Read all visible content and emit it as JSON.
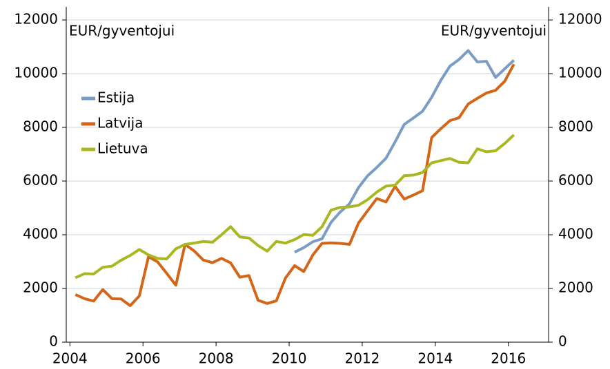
{
  "chart_data": {
    "type": "line",
    "annotations": [
      "EUR/gyventojui",
      "EUR/gyventojui"
    ],
    "x": [
      2004.15,
      2004.4,
      2004.65,
      2004.9,
      2005.15,
      2005.4,
      2005.65,
      2005.9,
      2006.15,
      2006.4,
      2006.65,
      2006.9,
      2007.15,
      2007.4,
      2007.65,
      2007.9,
      2008.15,
      2008.4,
      2008.65,
      2008.9,
      2009.15,
      2009.4,
      2009.65,
      2009.9,
      2010.15,
      2010.4,
      2010.65,
      2010.9,
      2011.15,
      2011.4,
      2011.65,
      2011.9,
      2012.15,
      2012.4,
      2012.65,
      2012.9,
      2013.15,
      2013.4,
      2013.65,
      2013.9,
      2014.15,
      2014.4,
      2014.65,
      2014.9,
      2015.15,
      2015.4,
      2015.65,
      2015.9,
      2016.15
    ],
    "series": [
      {
        "name": "Estija",
        "color": "#7b9cc4",
        "values": [
          null,
          null,
          null,
          null,
          null,
          null,
          null,
          null,
          null,
          null,
          null,
          null,
          null,
          null,
          null,
          null,
          null,
          null,
          null,
          null,
          null,
          null,
          null,
          null,
          3350,
          3520,
          3740,
          3850,
          4470,
          4850,
          5150,
          5760,
          6200,
          6510,
          6850,
          7460,
          8110,
          8350,
          8600,
          9120,
          9750,
          10280,
          10530,
          10860,
          10440,
          10460,
          9860,
          10180,
          10500
        ]
      },
      {
        "name": "Latvija",
        "color": "#d4661a",
        "values": [
          1770,
          1620,
          1530,
          1960,
          1620,
          1610,
          1360,
          1720,
          3180,
          2990,
          2560,
          2120,
          3640,
          3400,
          3060,
          2960,
          3120,
          2950,
          2420,
          2480,
          1560,
          1440,
          1540,
          2390,
          2850,
          2630,
          3250,
          3680,
          3700,
          3680,
          3640,
          4440,
          4900,
          5350,
          5220,
          5800,
          5330,
          5480,
          5640,
          7620,
          7950,
          8250,
          8360,
          8870,
          9080,
          9280,
          9380,
          9720,
          10350
        ]
      },
      {
        "name": "Lietuva",
        "color": "#a9b821",
        "values": [
          2400,
          2550,
          2540,
          2790,
          2830,
          3050,
          3230,
          3450,
          3250,
          3120,
          3100,
          3480,
          3640,
          3690,
          3750,
          3720,
          4000,
          4300,
          3920,
          3880,
          3600,
          3390,
          3750,
          3690,
          3820,
          4010,
          3980,
          4300,
          4920,
          5020,
          5040,
          5100,
          5310,
          5590,
          5810,
          5850,
          6200,
          6220,
          6320,
          6680,
          6760,
          6840,
          6700,
          6680,
          7200,
          7090,
          7130,
          7400,
          7720
        ]
      }
    ],
    "xlim": [
      2003.9,
      2017.1
    ],
    "xticks": [
      2004,
      2006,
      2008,
      2010,
      2012,
      2014,
      2016
    ],
    "ylim": [
      0,
      12000
    ],
    "yticks": [
      0,
      2000,
      4000,
      6000,
      8000,
      10000,
      12000
    ],
    "y2lim": [
      0,
      12000
    ],
    "y2ticks": [
      0,
      2000,
      4000,
      6000,
      8000,
      10000,
      12000
    ],
    "grid": true,
    "legend": "upper left"
  }
}
